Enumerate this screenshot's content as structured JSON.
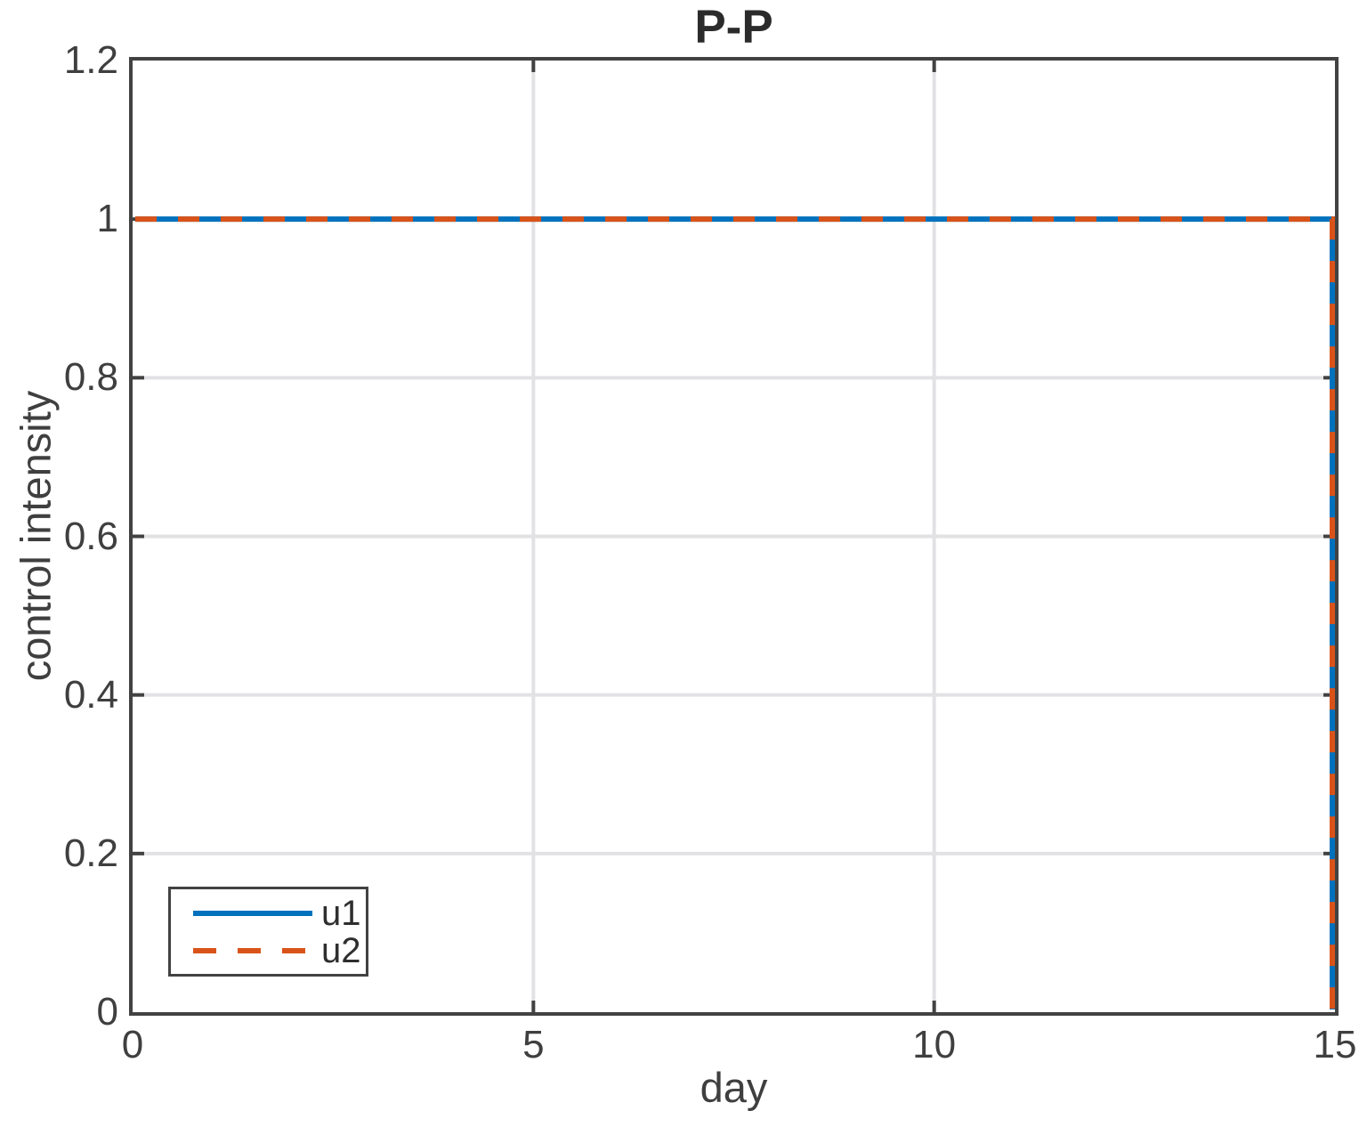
{
  "figure": {
    "background": "#ffffff"
  },
  "chart_data": {
    "type": "line",
    "title": "P-P",
    "xlabel": "day",
    "ylabel": "control intensity",
    "xlim": [
      0,
      15
    ],
    "ylim": [
      0,
      1.2
    ],
    "x_ticks": [
      0,
      5,
      10,
      15
    ],
    "x_tick_labels": [
      "0",
      "5",
      "10",
      "15"
    ],
    "y_ticks": [
      0,
      0.2,
      0.4,
      0.6,
      0.8,
      1,
      1.2
    ],
    "y_tick_labels": [
      "0",
      "0.2",
      "0.4",
      "0.6",
      "0.8",
      "1",
      "1.2"
    ],
    "grid": true,
    "legend_position": "bottom-left",
    "axis_color": "#424242",
    "grid_color": "#e2e2e5",
    "text_color": "#3f3f3f",
    "series": [
      {
        "name": "u1",
        "color": "#0072BD",
        "style": "solid",
        "points": [
          [
            0,
            1
          ],
          [
            15,
            1
          ],
          [
            15,
            0
          ]
        ]
      },
      {
        "name": "u2",
        "color": "#D95319",
        "style": "dashed",
        "points": [
          [
            0,
            1
          ],
          [
            15,
            1
          ],
          [
            15,
            0
          ]
        ]
      }
    ]
  }
}
